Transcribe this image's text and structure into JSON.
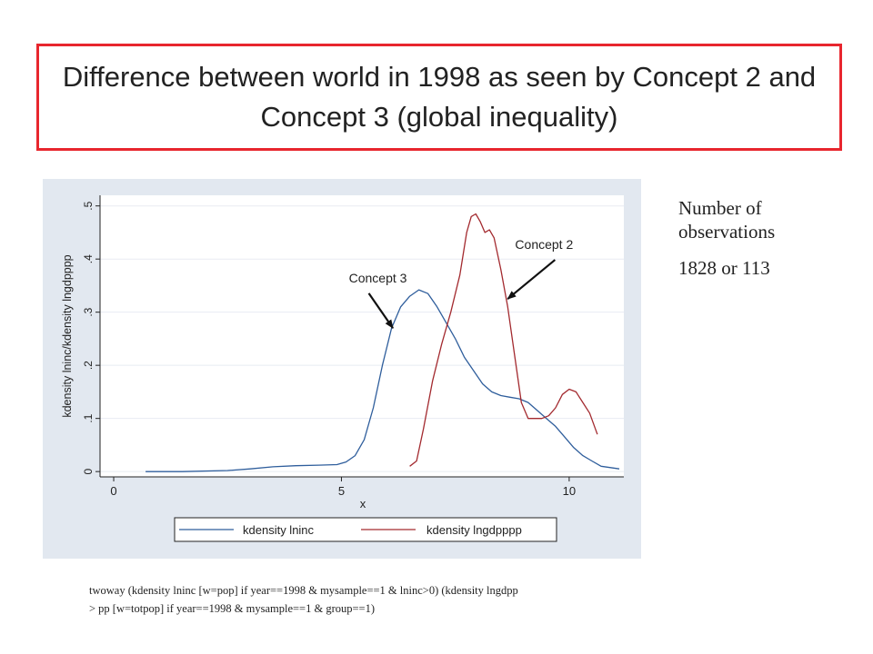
{
  "title": "Difference between world in 1998 as seen by Concept 2 and Concept 3 (global inequality)",
  "side_note": {
    "line1": "Number of",
    "line2": "observations",
    "count": "1828 or 113"
  },
  "command": {
    "line1": "twoway (kdensity lninc  [w=pop] if year==1998 & mysample==1 & lninc>0) (kdensity lngdpp",
    "line2": "> pp [w=totpop] if year==1998 & mysample==1 & group==1)"
  },
  "colors": {
    "frame": "#e8262e",
    "plot_bg": "#ffffff",
    "outer_bg": "#e2e8f0",
    "series1": "#2f5e9c",
    "series2": "#a32a2f"
  },
  "chart_data": {
    "type": "line",
    "title": "",
    "xlabel": "x",
    "ylabel": "kdensity lninc/kdensity lngdpppp",
    "xlim": [
      -0.3,
      11.2
    ],
    "ylim": [
      -0.01,
      0.52
    ],
    "xticks": [
      0,
      5,
      10
    ],
    "xtick_labels": [
      "0",
      "5",
      "10"
    ],
    "yticks": [
      0,
      0.1,
      0.2,
      0.3,
      0.4,
      0.5
    ],
    "ytick_labels": [
      "0",
      ".1",
      ".2",
      ".3",
      ".4",
      ".5"
    ],
    "grid": true,
    "legend": "bottom",
    "series": [
      {
        "name": "kdensity lninc",
        "x": [
          0.7,
          1.5,
          2.5,
          3,
          3.5,
          4,
          4.5,
          4.9,
          5.1,
          5.3,
          5.5,
          5.7,
          5.9,
          6.1,
          6.3,
          6.5,
          6.7,
          6.9,
          7.1,
          7.3,
          7.5,
          7.7,
          7.9,
          8.1,
          8.3,
          8.5,
          8.7,
          8.9,
          9.1,
          9.3,
          9.5,
          9.7,
          9.9,
          10.1,
          10.3,
          10.5,
          10.7,
          11.1
        ],
        "y": [
          0,
          0,
          0.002,
          0.005,
          0.009,
          0.011,
          0.012,
          0.013,
          0.018,
          0.03,
          0.06,
          0.12,
          0.2,
          0.27,
          0.31,
          0.33,
          0.342,
          0.335,
          0.31,
          0.28,
          0.25,
          0.215,
          0.19,
          0.165,
          0.15,
          0.143,
          0.14,
          0.137,
          0.13,
          0.115,
          0.1,
          0.085,
          0.065,
          0.045,
          0.03,
          0.02,
          0.01,
          0.005
        ]
      },
      {
        "name": "kdensity lngdpppp",
        "x": [
          6.5,
          6.65,
          6.8,
          7,
          7.2,
          7.4,
          7.6,
          7.75,
          7.85,
          7.95,
          8.05,
          8.15,
          8.25,
          8.35,
          8.5,
          8.65,
          8.8,
          8.95,
          9.1,
          9.25,
          9.4,
          9.55,
          9.7,
          9.85,
          10,
          10.15,
          10.3,
          10.45,
          10.62
        ],
        "y": [
          0.01,
          0.02,
          0.08,
          0.17,
          0.24,
          0.3,
          0.37,
          0.45,
          0.48,
          0.485,
          0.47,
          0.45,
          0.455,
          0.44,
          0.38,
          0.31,
          0.22,
          0.13,
          0.1,
          0.1,
          0.1,
          0.105,
          0.12,
          0.145,
          0.155,
          0.15,
          0.13,
          0.11,
          0.07
        ]
      }
    ],
    "annotations": [
      {
        "text": "Concept 3",
        "x": 5.8,
        "y": 0.356,
        "arrow_to": [
          6.13,
          0.27
        ]
      },
      {
        "text": "Concept 2",
        "x": 9.45,
        "y": 0.419,
        "arrow_to": [
          8.65,
          0.325
        ]
      }
    ]
  }
}
